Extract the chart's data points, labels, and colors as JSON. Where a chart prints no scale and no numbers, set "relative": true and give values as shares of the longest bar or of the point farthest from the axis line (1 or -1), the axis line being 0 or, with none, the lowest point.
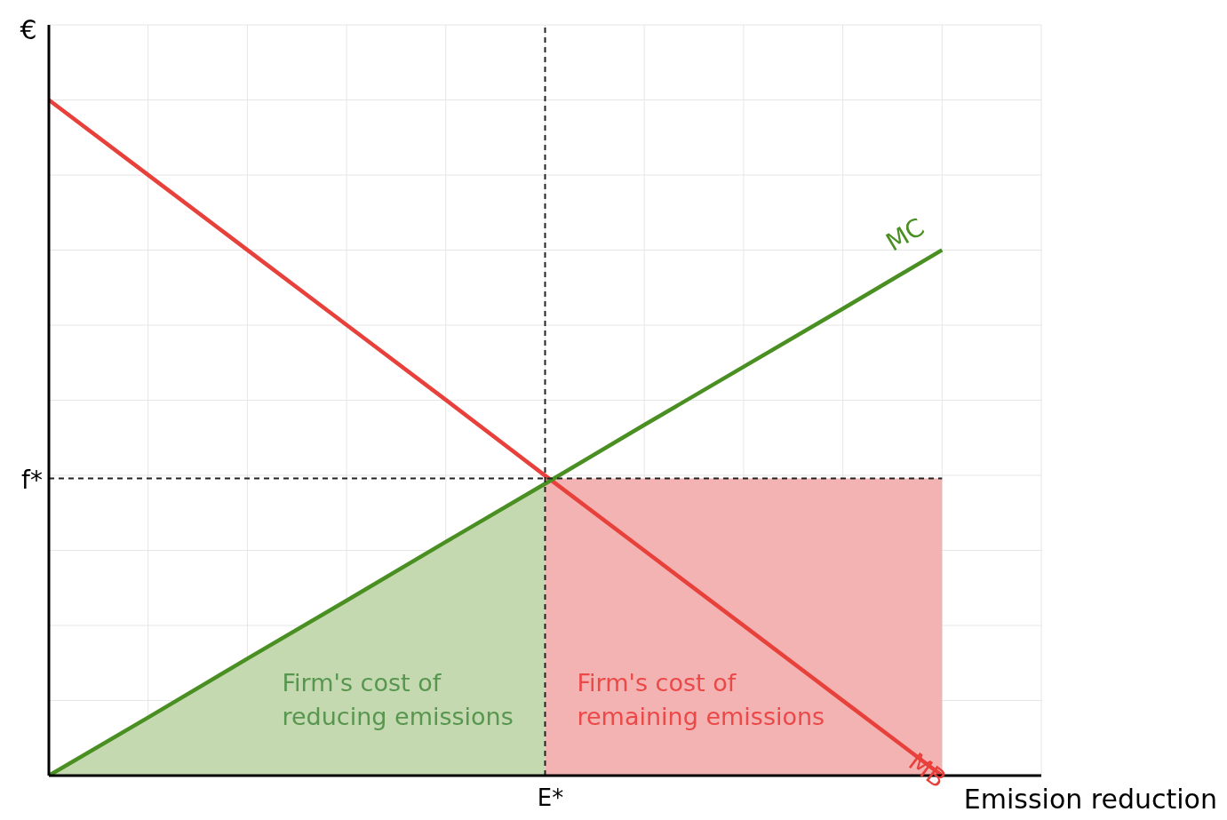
{
  "chart_data": {
    "type": "line",
    "relative": true,
    "xlabel": "Emission reduction",
    "ylabel": "€",
    "grid": true,
    "legend": false,
    "marker": "none",
    "line_style": "solid",
    "categories": [
      null,
      null,
      null,
      null,
      null,
      null,
      null,
      null,
      null,
      null,
      null
    ],
    "annotations": [
      "E*"
    ],
    "series": [
      {
        "type": "area",
        "name": "Firm's cost of reducing emissions",
        "color": "#c4d9b0",
        "values": [
          0,
          0.086,
          0.173,
          0.259,
          0.346,
          0.432,
          null,
          null,
          null,
          null,
          null
        ]
      },
      {
        "type": "area",
        "name": "Firm's cost of remaining emissions",
        "color": "#f4b3b3",
        "values": [
          null,
          null,
          null,
          null,
          null,
          0.44,
          0.44,
          0.44,
          0.44,
          0.44,
          null
        ]
      },
      {
        "name": "MB",
        "color": "#e8403a",
        "values": [
          1,
          0.889,
          0.778,
          0.667,
          0.556,
          0.444,
          0.333,
          0.222,
          0.111,
          0,
          null
        ]
      },
      {
        "name": "MC",
        "color": "#4a8f22",
        "values": [
          0,
          0.086,
          0.173,
          0.259,
          0.346,
          0.432,
          0.519,
          0.605,
          0.691,
          0.778,
          null
        ]
      }
    ],
    "ref_lines": [
      {
        "axis": "y",
        "value": 0.44,
        "label": "f*",
        "color": "#222222",
        "line_style": "dashed"
      }
    ]
  }
}
